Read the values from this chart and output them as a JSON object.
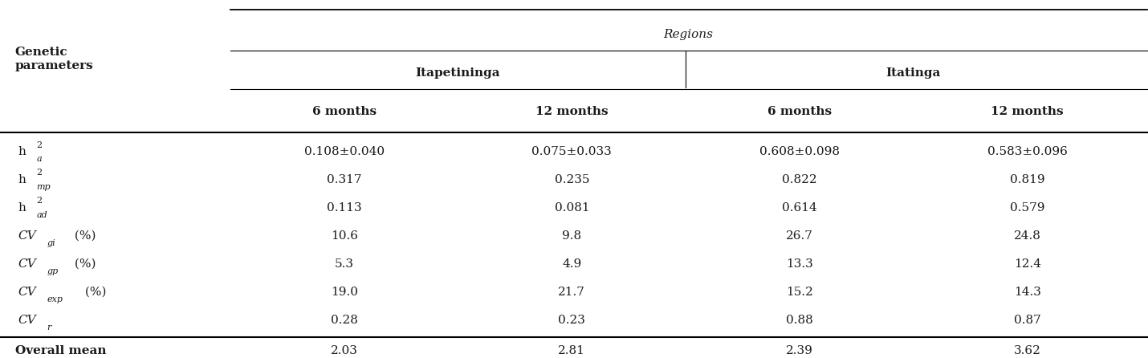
{
  "title": "Regions",
  "col_group1": "Itapetininga",
  "col_group2": "Itatinga",
  "subheaders": [
    "6 months",
    "12 months",
    "6 months",
    "12 months"
  ],
  "row_label_col": "Genetic\nparameters",
  "data": [
    [
      "0.108±0.040",
      "0.075±0.033",
      "0.608±0.098",
      "0.583±0.096"
    ],
    [
      "0.317",
      "0.235",
      "0.822",
      "0.819"
    ],
    [
      "0.113",
      "0.081",
      "0.614",
      "0.579"
    ],
    [
      "10.6",
      "9.8",
      "26.7",
      "24.8"
    ],
    [
      "5.3",
      "4.9",
      "13.3",
      "12.4"
    ],
    [
      "19.0",
      "21.7",
      "15.2",
      "14.3"
    ],
    [
      "0.28",
      "0.23",
      "0.88",
      "0.87"
    ]
  ],
  "footer_label": "Overall mean",
  "footer_data": [
    "2.03",
    "2.81",
    "2.39",
    "3.62"
  ],
  "bg_color": "#ffffff",
  "text_color": "#1a1a1a",
  "font_size": 11,
  "row_label_configs": [
    [
      "h",
      "2",
      "a",
      ""
    ],
    [
      "h",
      "2",
      "mp",
      ""
    ],
    [
      "h",
      "2",
      "ad",
      ""
    ],
    [
      "CV",
      "",
      "gi",
      " (%)"
    ],
    [
      "CV",
      "",
      "gp",
      " (%)"
    ],
    [
      "CV",
      "",
      "exp",
      " (%)"
    ],
    [
      "CV",
      "",
      "r",
      ""
    ]
  ]
}
